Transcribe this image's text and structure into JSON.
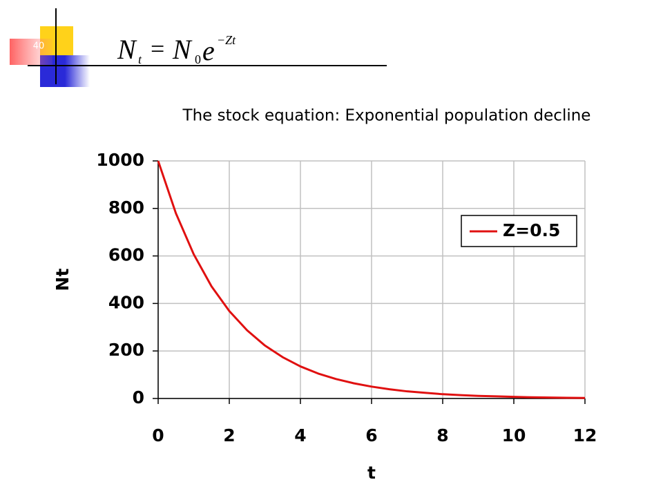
{
  "slide_number": 40,
  "equation": {
    "lhs": "N",
    "lhs_sub": "t",
    "equals": "=",
    "rhs": "N",
    "rhs_sub": "0",
    "base": "e",
    "exponent": "−Zt"
  },
  "chart_data": {
    "type": "line",
    "title": "The stock equation: Exponential population decline",
    "xlabel": "t",
    "ylabel": "Nt",
    "x": [
      0,
      0.5,
      1,
      1.5,
      2,
      2.5,
      3,
      3.5,
      4,
      4.5,
      5,
      5.5,
      6,
      6.5,
      7,
      7.5,
      8,
      8.5,
      9,
      9.5,
      10,
      10.5,
      11,
      11.5,
      12
    ],
    "series": [
      {
        "name": "Z=0.5",
        "color": "#e01010",
        "values": [
          1000,
          779,
          607,
          472,
          368,
          287,
          223,
          174,
          135,
          105,
          82,
          64,
          50,
          39,
          30,
          24,
          18,
          14,
          11,
          9,
          7,
          5,
          4,
          3,
          2
        ]
      }
    ],
    "xlim": [
      0,
      12
    ],
    "xticks": [
      0,
      2,
      4,
      6,
      8,
      10,
      12
    ],
    "ylim": [
      0,
      1000
    ],
    "yticks": [
      0,
      200,
      400,
      600,
      800,
      1000
    ],
    "grid": true,
    "legend": "right"
  }
}
